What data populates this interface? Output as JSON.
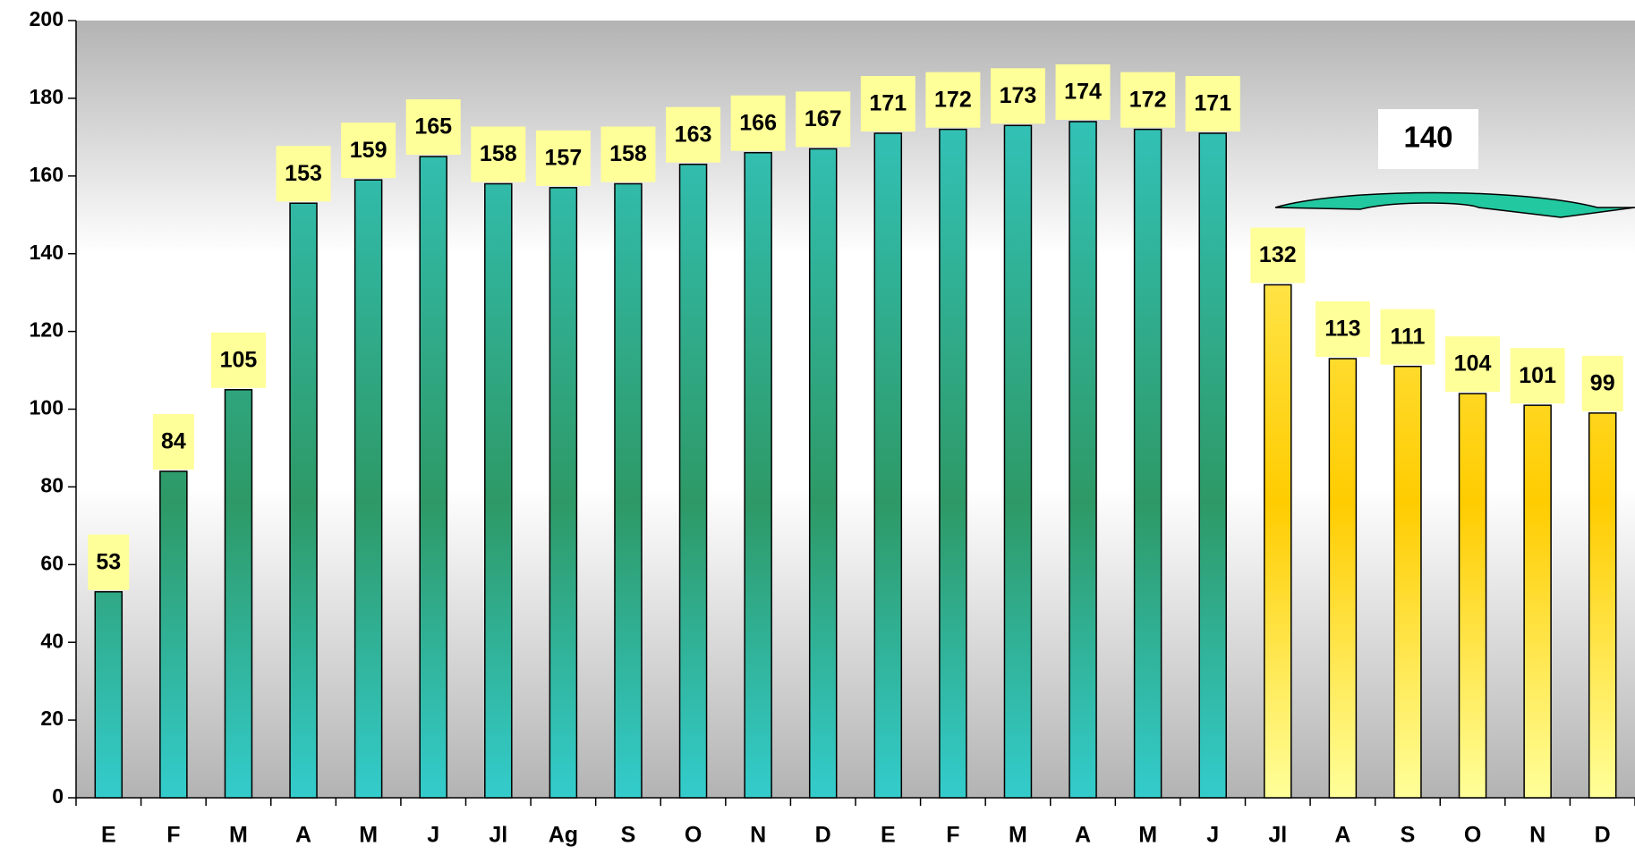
{
  "chart_data": {
    "type": "bar",
    "categories": [
      "E",
      "F",
      "M",
      "A",
      "M",
      "J",
      "Jl",
      "Ag",
      "S",
      "O",
      "N",
      "D",
      "E",
      "F",
      "M",
      "A",
      "M",
      "J",
      "Jl",
      "A",
      "S",
      "O",
      "N",
      "D"
    ],
    "values": [
      53,
      84,
      105,
      153,
      159,
      165,
      158,
      157,
      158,
      163,
      166,
      167,
      171,
      172,
      173,
      174,
      172,
      171,
      132,
      113,
      111,
      104,
      101,
      99
    ],
    "colors": [
      "#33cccc",
      "#33cccc",
      "#33cccc",
      "#33cccc",
      "#33cccc",
      "#33cccc",
      "#33cccc",
      "#33cccc",
      "#33cccc",
      "#33cccc",
      "#33cccc",
      "#33cccc",
      "#33cccc",
      "#33cccc",
      "#33cccc",
      "#33cccc",
      "#33cccc",
      "#33cccc",
      "#ffff99",
      "#ffff99",
      "#ffff99",
      "#ffff99",
      "#ffff99",
      "#ffff99"
    ],
    "gradient_mid": {
      "#33cccc": "#2e9966",
      "#ffff99": "#ffcc00"
    },
    "label_background": "#ffff99",
    "ylim": [
      0,
      200
    ],
    "yticks": [
      0,
      20,
      40,
      60,
      80,
      100,
      120,
      140,
      160,
      180,
      200
    ],
    "grid": false,
    "annotations": [
      {
        "text": "140"
      }
    ]
  }
}
